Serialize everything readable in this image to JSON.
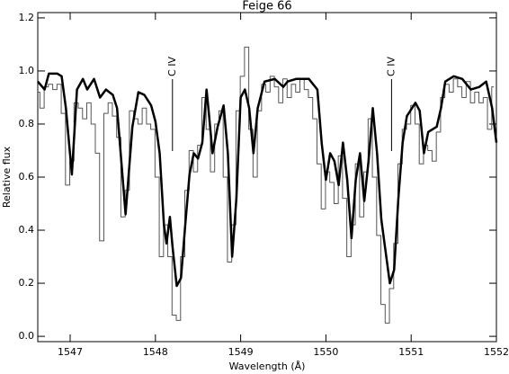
{
  "chart_data": {
    "type": "line",
    "title": "Feige 66",
    "x_label": "Wavelength (Å)",
    "y_label": "Relative flux",
    "xlim": [
      1546.62,
      1552.0
    ],
    "ylim": [
      -0.02,
      1.22
    ],
    "xticks": [
      1547,
      1548,
      1549,
      1550,
      1551,
      1552
    ],
    "yticks": [
      {
        "value": 0,
        "label": "0.0"
      },
      0.2,
      0.4,
      0.6,
      0.8,
      {
        "value": 1,
        "label": "1.0"
      },
      1.2
    ],
    "annotations": [
      {
        "text": "C IV",
        "x": 1548.2
      },
      {
        "text": "C IV",
        "x": 1550.77
      }
    ],
    "series": [
      {
        "color": "#555555",
        "drawstyle": "steps-mid",
        "x": [
          1546.62,
          1546.67,
          1546.72,
          1546.77,
          1546.82,
          1546.87,
          1546.92,
          1546.97,
          1547.02,
          1547.07,
          1547.12,
          1547.17,
          1547.22,
          1547.27,
          1547.32,
          1547.37,
          1547.42,
          1547.47,
          1547.52,
          1547.57,
          1547.62,
          1547.67,
          1547.72,
          1547.77,
          1547.82,
          1547.87,
          1547.92,
          1547.97,
          1548.02,
          1548.07,
          1548.12,
          1548.17,
          1548.22,
          1548.27,
          1548.32,
          1548.37,
          1548.42,
          1548.47,
          1548.52,
          1548.57,
          1548.62,
          1548.67,
          1548.72,
          1548.77,
          1548.82,
          1548.87,
          1548.92,
          1548.97,
          1549.02,
          1549.07,
          1549.12,
          1549.17,
          1549.22,
          1549.27,
          1549.32,
          1549.37,
          1549.42,
          1549.47,
          1549.52,
          1549.57,
          1549.62,
          1549.67,
          1549.72,
          1549.77,
          1549.82,
          1549.87,
          1549.92,
          1549.97,
          1550.02,
          1550.07,
          1550.12,
          1550.17,
          1550.22,
          1550.27,
          1550.32,
          1550.37,
          1550.42,
          1550.47,
          1550.52,
          1550.57,
          1550.62,
          1550.67,
          1550.72,
          1550.77,
          1550.82,
          1550.87,
          1550.92,
          1550.97,
          1551.02,
          1551.07,
          1551.12,
          1551.17,
          1551.22,
          1551.27,
          1551.32,
          1551.37,
          1551.42,
          1551.47,
          1551.52,
          1551.57,
          1551.62,
          1551.67,
          1551.72,
          1551.77,
          1551.82,
          1551.87,
          1551.92,
          1551.97
        ],
        "values": [
          0.92,
          0.86,
          0.94,
          0.95,
          0.93,
          0.95,
          0.84,
          0.57,
          0.66,
          0.88,
          0.86,
          0.82,
          0.88,
          0.8,
          0.69,
          0.36,
          0.84,
          0.88,
          0.83,
          0.75,
          0.45,
          0.55,
          0.85,
          0.82,
          0.8,
          0.86,
          0.8,
          0.78,
          0.6,
          0.3,
          0.42,
          0.3,
          0.08,
          0.06,
          0.3,
          0.55,
          0.7,
          0.62,
          0.72,
          0.9,
          0.78,
          0.62,
          0.8,
          0.85,
          0.6,
          0.28,
          0.42,
          0.85,
          0.98,
          1.09,
          0.78,
          0.6,
          0.85,
          0.95,
          0.92,
          0.98,
          0.94,
          0.88,
          0.97,
          0.9,
          0.95,
          0.92,
          0.97,
          0.93,
          0.9,
          0.82,
          0.65,
          0.48,
          0.62,
          0.58,
          0.5,
          0.68,
          0.52,
          0.3,
          0.42,
          0.65,
          0.45,
          0.62,
          0.82,
          0.6,
          0.38,
          0.12,
          0.05,
          0.18,
          0.35,
          0.65,
          0.78,
          0.8,
          0.87,
          0.8,
          0.65,
          0.72,
          0.7,
          0.66,
          0.77,
          0.9,
          0.95,
          0.92,
          0.97,
          0.94,
          0.9,
          0.96,
          0.88,
          0.92,
          0.88,
          0.9,
          0.78,
          0.94
        ]
      },
      {
        "color": "#000000",
        "x": [
          1546.62,
          1546.7,
          1546.75,
          1546.85,
          1546.9,
          1546.95,
          1547.02,
          1547.08,
          1547.15,
          1547.2,
          1547.28,
          1547.35,
          1547.42,
          1547.5,
          1547.55,
          1547.65,
          1547.73,
          1547.8,
          1547.87,
          1547.95,
          1548.0,
          1548.05,
          1548.1,
          1548.13,
          1548.17,
          1548.2,
          1548.25,
          1548.3,
          1548.35,
          1548.4,
          1548.45,
          1548.5,
          1548.55,
          1548.6,
          1548.63,
          1548.67,
          1548.73,
          1548.8,
          1548.85,
          1548.9,
          1548.95,
          1549.0,
          1549.05,
          1549.1,
          1549.15,
          1549.2,
          1549.28,
          1549.4,
          1549.5,
          1549.55,
          1549.65,
          1549.8,
          1549.9,
          1549.95,
          1550.0,
          1550.05,
          1550.1,
          1550.15,
          1550.2,
          1550.25,
          1550.3,
          1550.35,
          1550.4,
          1550.45,
          1550.5,
          1550.55,
          1550.6,
          1550.65,
          1550.7,
          1550.75,
          1550.8,
          1550.85,
          1550.9,
          1550.95,
          1551.05,
          1551.1,
          1551.15,
          1551.2,
          1551.3,
          1551.35,
          1551.4,
          1551.5,
          1551.6,
          1551.7,
          1551.8,
          1551.88,
          1551.95,
          1552.0
        ],
        "values": [
          0.96,
          0.93,
          0.99,
          0.99,
          0.98,
          0.86,
          0.61,
          0.93,
          0.97,
          0.93,
          0.97,
          0.9,
          0.93,
          0.91,
          0.86,
          0.46,
          0.79,
          0.92,
          0.91,
          0.87,
          0.81,
          0.69,
          0.42,
          0.35,
          0.45,
          0.34,
          0.19,
          0.22,
          0.42,
          0.61,
          0.69,
          0.67,
          0.73,
          0.93,
          0.83,
          0.69,
          0.79,
          0.87,
          0.69,
          0.3,
          0.52,
          0.9,
          0.93,
          0.86,
          0.69,
          0.86,
          0.96,
          0.97,
          0.94,
          0.96,
          0.97,
          0.97,
          0.93,
          0.73,
          0.59,
          0.69,
          0.66,
          0.57,
          0.73,
          0.59,
          0.37,
          0.59,
          0.69,
          0.51,
          0.66,
          0.86,
          0.69,
          0.44,
          0.32,
          0.2,
          0.25,
          0.52,
          0.73,
          0.83,
          0.88,
          0.85,
          0.69,
          0.77,
          0.79,
          0.86,
          0.96,
          0.98,
          0.97,
          0.93,
          0.94,
          0.96,
          0.86,
          0.73
        ]
      }
    ]
  }
}
